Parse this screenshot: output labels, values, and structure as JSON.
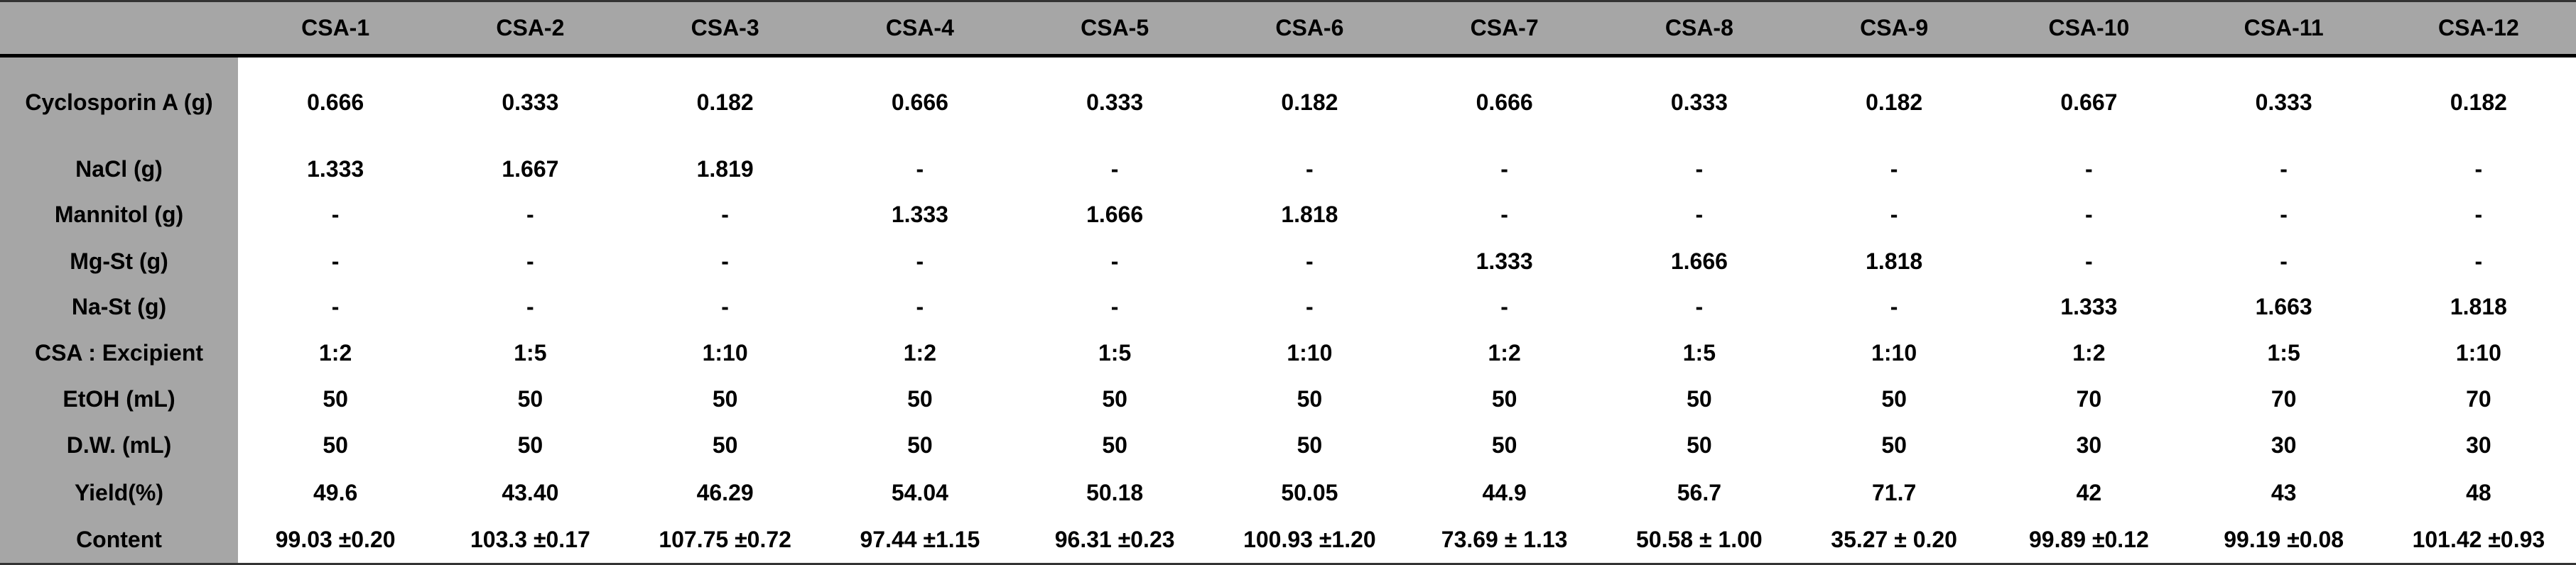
{
  "table": {
    "columns": [
      "CSA-1",
      "CSA-2",
      "CSA-3",
      "CSA-4",
      "CSA-5",
      "CSA-6",
      "CSA-7",
      "CSA-8",
      "CSA-9",
      "CSA-10",
      "CSA-11",
      "CSA-12"
    ],
    "rows": [
      {
        "label": "Cyclosporin A (g)",
        "cells": [
          "0.666",
          "0.333",
          "0.182",
          "0.666",
          "0.333",
          "0.182",
          "0.666",
          "0.333",
          "0.182",
          "0.667",
          "0.333",
          "0.182"
        ]
      },
      {
        "label": "NaCl (g)",
        "cells": [
          "1.333",
          "1.667",
          "1.819",
          "-",
          "-",
          "-",
          "-",
          "-",
          "-",
          "-",
          "-",
          "-"
        ]
      },
      {
        "label": "Mannitol (g)",
        "cells": [
          "-",
          "-",
          "-",
          "1.333",
          "1.666",
          "1.818",
          "-",
          "-",
          "-",
          "-",
          "-",
          "-"
        ]
      },
      {
        "label": "Mg-St (g)",
        "cells": [
          "-",
          "-",
          "-",
          "-",
          "-",
          "-",
          "1.333",
          "1.666",
          "1.818",
          "-",
          "-",
          "-"
        ]
      },
      {
        "label": "Na-St (g)",
        "cells": [
          "-",
          "-",
          "-",
          "-",
          "-",
          "-",
          "-",
          "-",
          "-",
          "1.333",
          "1.663",
          "1.818"
        ]
      },
      {
        "label": "CSA : Excipient",
        "cells": [
          "1:2",
          "1:5",
          "1:10",
          "1:2",
          "1:5",
          "1:10",
          "1:2",
          "1:5",
          "1:10",
          "1:2",
          "1:5",
          "1:10"
        ]
      },
      {
        "label": "EtOH (mL)",
        "cells": [
          "50",
          "50",
          "50",
          "50",
          "50",
          "50",
          "50",
          "50",
          "50",
          "70",
          "70",
          "70"
        ]
      },
      {
        "label": "D.W. (mL)",
        "cells": [
          "50",
          "50",
          "50",
          "50",
          "50",
          "50",
          "50",
          "50",
          "50",
          "30",
          "30",
          "30"
        ]
      },
      {
        "label": "Yield(%)",
        "cells": [
          "49.6",
          "43.40",
          "46.29",
          "54.04",
          "50.18",
          "50.05",
          "44.9",
          "56.7",
          "71.7",
          "42",
          "43",
          "48"
        ]
      },
      {
        "label": "Content",
        "cells": [
          "99.03 ±0.20",
          "103.3 ±0.17",
          "107.75 ±0.72",
          "97.44 ±1.15",
          "96.31 ±0.23",
          "100.93 ±1.20",
          "73.69 ± 1.13",
          "50.58 ± 1.00",
          "35.27 ± 0.20",
          "99.89 ±0.12",
          "99.19 ±0.08",
          "101.42 ±0.93"
        ]
      }
    ]
  }
}
